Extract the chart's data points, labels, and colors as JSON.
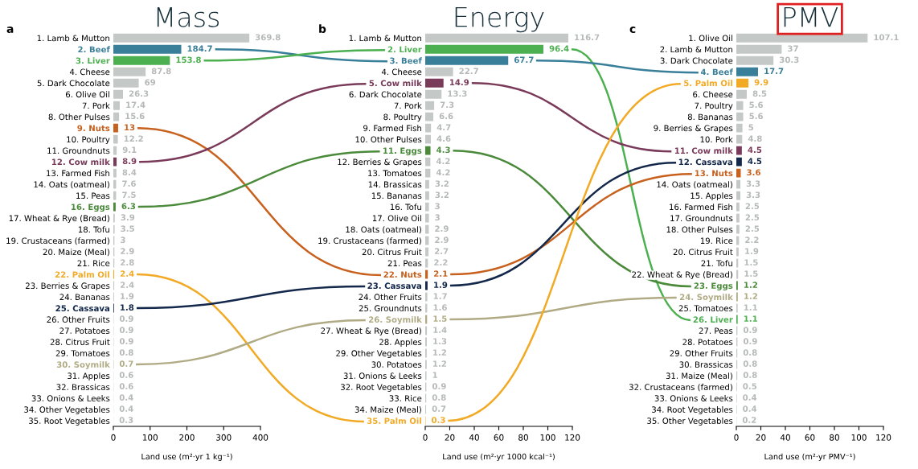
{
  "chart_data": [
    {
      "type": "bar",
      "orientation": "horizontal",
      "title": "Mass",
      "annotations": [
        "a"
      ],
      "xlabel": "Land use (m²·yr 1 kg⁻¹)",
      "xlim": [
        0,
        400
      ],
      "xticks": [
        0,
        100,
        200,
        300,
        400
      ],
      "data_labels": true,
      "grid": false,
      "legend": false,
      "categories": [
        "1. Lamb & Mutton",
        "2. Beef",
        "3. Liver",
        "4. Cheese",
        "5. Dark Chocolate",
        "6. Olive Oil",
        "7. Pork",
        "8. Other Pulses",
        "9. Nuts",
        "10. Poultry",
        "11. Groundnuts",
        "12. Cow milk",
        "13. Farmed Fish",
        "14. Oats (oatmeal)",
        "15. Peas",
        "16. Eggs",
        "17. Wheat & Rye (Bread)",
        "18. Tofu",
        "19. Crustaceans (farmed)",
        "20. Maize (Meal)",
        "21. Rice",
        "22. Palm Oil",
        "23. Berries & Grapes",
        "24. Bananas",
        "25. Cassava",
        "26. Other Fruits",
        "27. Potatoes",
        "28. Citrus Fruit",
        "29. Tomatoes",
        "30. Soymilk",
        "31. Apples",
        "32. Brassicas",
        "33. Onions & Leeks",
        "34. Other Vegetables",
        "35. Root Vegetables"
      ],
      "values": [
        369.8,
        184.7,
        153.8,
        87.8,
        69,
        26.3,
        17.4,
        15.6,
        13,
        12.2,
        9.1,
        8.9,
        8.4,
        7.6,
        7.5,
        6.3,
        3.9,
        3.5,
        3,
        2.9,
        2.8,
        2.4,
        2.4,
        1.9,
        1.8,
        0.9,
        0.9,
        0.9,
        0.8,
        0.7,
        0.6,
        0.6,
        0.4,
        0.4,
        0.3
      ],
      "colors": [
        "#c4c8c6",
        "#3a7f9a",
        "#4cb050",
        "#c4c8c6",
        "#c4c8c6",
        "#c4c8c6",
        "#c4c8c6",
        "#c4c8c6",
        "#c8601e",
        "#c4c8c6",
        "#c4c8c6",
        "#7a3a5a",
        "#c4c8c6",
        "#c4c8c6",
        "#c4c8c6",
        "#4a8a3a",
        "#c4c8c6",
        "#c4c8c6",
        "#c4c8c6",
        "#c4c8c6",
        "#c4c8c6",
        "#f2aa25",
        "#c4c8c6",
        "#c4c8c6",
        "#13284a",
        "#c4c8c6",
        "#c4c8c6",
        "#c4c8c6",
        "#c4c8c6",
        "#b0ab85",
        "#c4c8c6",
        "#c4c8c6",
        "#c4c8c6",
        "#c4c8c6",
        "#c4c8c6"
      ]
    },
    {
      "type": "bar",
      "orientation": "horizontal",
      "title": "Energy",
      "annotations": [
        "b"
      ],
      "xlabel": "Land use (m²·yr 1000 kcal⁻¹)",
      "xlim": [
        0,
        120
      ],
      "xticks": [
        0,
        20,
        40,
        60,
        80,
        100,
        120
      ],
      "data_labels": true,
      "grid": false,
      "legend": false,
      "categories": [
        "1. Lamb & Mutton",
        "2. Liver",
        "3. Beef",
        "4. Cheese",
        "5. Cow milk",
        "6. Dark Chocolate",
        "7. Pork",
        "8. Poultry",
        "9. Farmed Fish",
        "10. Other Pulses",
        "11. Eggs",
        "12. Berries & Grapes",
        "13. Tomatoes",
        "14. Brassicas",
        "15. Bananas",
        "16. Tofu",
        "17. Olive Oil",
        "18. Oats (oatmeal)",
        "19. Crustaceans (farmed)",
        "20. Citrus Fruit",
        "21. Peas",
        "22. Nuts",
        "23. Cassava",
        "24. Other Fruits",
        "25. Groundnuts",
        "26. Soymilk",
        "27. Wheat & Rye (Bread)",
        "28. Apples",
        "29. Other Vegetables",
        "30. Potatoes",
        "31. Onions & Leeks",
        "32. Root Vegetables",
        "33. Rice",
        "34. Maize (Meal)",
        "35. Palm Oil"
      ],
      "values": [
        116.7,
        96.4,
        67.7,
        22.7,
        14.9,
        13.3,
        7.3,
        6.6,
        4.7,
        4.6,
        4.3,
        4.2,
        4.2,
        3.2,
        3.2,
        3,
        3,
        2.9,
        2.9,
        2.7,
        2.2,
        2.1,
        1.9,
        1.7,
        1.6,
        1.5,
        1.4,
        1.3,
        1.2,
        1.2,
        1,
        0.9,
        0.8,
        0.7,
        0.3
      ],
      "colors": [
        "#c4c8c6",
        "#4cb050",
        "#3a7f9a",
        "#c4c8c6",
        "#7a3a5a",
        "#c4c8c6",
        "#c4c8c6",
        "#c4c8c6",
        "#c4c8c6",
        "#c4c8c6",
        "#4a8a3a",
        "#c4c8c6",
        "#c4c8c6",
        "#c4c8c6",
        "#c4c8c6",
        "#c4c8c6",
        "#c4c8c6",
        "#c4c8c6",
        "#c4c8c6",
        "#c4c8c6",
        "#c4c8c6",
        "#c8601e",
        "#13284a",
        "#c4c8c6",
        "#c4c8c6",
        "#b0ab85",
        "#c4c8c6",
        "#c4c8c6",
        "#c4c8c6",
        "#c4c8c6",
        "#c4c8c6",
        "#c4c8c6",
        "#c4c8c6",
        "#c4c8c6",
        "#f2aa25"
      ]
    },
    {
      "type": "bar",
      "orientation": "horizontal",
      "title": "PMV",
      "annotations": [
        "c"
      ],
      "xlabel": "Land use (m²·yr PMV⁻¹)",
      "xlim": [
        0,
        120
      ],
      "xticks": [
        0,
        20,
        40,
        60,
        80,
        100,
        120
      ],
      "data_labels": true,
      "grid": false,
      "legend": false,
      "categories": [
        "1. Olive Oil",
        "2. Lamb & Mutton",
        "3. Dark Chocolate",
        "4. Beef",
        "5. Palm Oil",
        "6. Cheese",
        "7. Poultry",
        "8. Bananas",
        "9. Berries & Grapes",
        "10. Pork",
        "11. Cow milk",
        "12. Cassava",
        "13. Nuts",
        "14. Oats (oatmeal)",
        "15. Apples",
        "16. Farmed Fish",
        "17. Groundnuts",
        "18. Other Pulses",
        "19. Rice",
        "20. Citrus Fruit",
        "21. Tofu",
        "22. Wheat & Rye (Bread)",
        "23. Eggs",
        "24. Soymilk",
        "25. Tomatoes",
        "26. Liver",
        "27. Peas",
        "28. Potatoes",
        "29. Other Fruits",
        "30. Brassicas",
        "31. Maize (Meal)",
        "32. Crustaceans (farmed)",
        "33. Onions & Leeks",
        "34. Root Vegetables",
        "35. Other Vegetables"
      ],
      "values": [
        107.1,
        37,
        30.3,
        17.7,
        9.9,
        8.5,
        5.6,
        5.6,
        5,
        4.8,
        4.5,
        4.5,
        3.6,
        3.3,
        3.3,
        2.5,
        2.5,
        2.5,
        2.2,
        1.9,
        1.5,
        1.5,
        1.2,
        1.2,
        1.1,
        1.1,
        0.9,
        0.9,
        0.8,
        0.8,
        0.8,
        0.5,
        0.4,
        0.4,
        0.2
      ],
      "colors": [
        "#c4c8c6",
        "#c4c8c6",
        "#c4c8c6",
        "#3a7f9a",
        "#f2aa25",
        "#c4c8c6",
        "#c4c8c6",
        "#c4c8c6",
        "#c4c8c6",
        "#c4c8c6",
        "#7a3a5a",
        "#13284a",
        "#c8601e",
        "#c4c8c6",
        "#c4c8c6",
        "#c4c8c6",
        "#c4c8c6",
        "#c4c8c6",
        "#c4c8c6",
        "#c4c8c6",
        "#c4c8c6",
        "#c4c8c6",
        "#4a8a3a",
        "#b0ab85",
        "#c4c8c6",
        "#4cb050",
        "#c4c8c6",
        "#c4c8c6",
        "#c4c8c6",
        "#c4c8c6",
        "#c4c8c6",
        "#c4c8c6",
        "#c4c8c6",
        "#c4c8c6",
        "#c4c8c6"
      ]
    }
  ]
}
